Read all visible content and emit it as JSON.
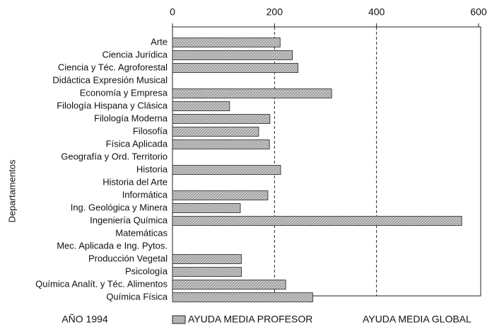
{
  "chart_data": {
    "type": "hbar",
    "ylabel": "Departamentos",
    "categories": [
      "Arte",
      "Ciencia Jurídica",
      "Ciencia y Téc. Agroforestal",
      "Didáctica Expresión Musical",
      "Economía y Empresa",
      "Filología Hispana y Clásica",
      "Filología Moderna",
      "Filosofía",
      "Física Aplicada",
      "Geografía y Ord. Territorio",
      "Historia",
      "Historia del Arte",
      "Informática",
      "Ing. Geológica y Minera",
      "Ingeniería Química",
      "Matemáticas",
      "Mec. Aplicada e Ing. Pytos.",
      "Producción Vegetal",
      "Psicología",
      "Química Analít. y Téc. Alimentos",
      "Química Física"
    ],
    "series": [
      {
        "name": "AYUDA MEDIA PROFESOR",
        "color": "#a0a0a0",
        "values": [
          211,
          235,
          246,
          null,
          312,
          112,
          191,
          169,
          190,
          null,
          212,
          null,
          187,
          133,
          567,
          null,
          null,
          135,
          135,
          222,
          275
        ]
      }
    ],
    "xlim": [
      0,
      600
    ],
    "xticks": [
      0,
      200,
      400,
      600
    ],
    "grid": true,
    "annotations": [
      "AÑO 1994",
      "AYUDA MEDIA GLOBAL"
    ]
  }
}
